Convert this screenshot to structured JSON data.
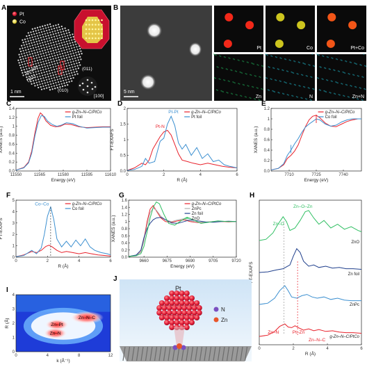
{
  "panels": {
    "A": {
      "label": "A",
      "legend": [
        {
          "name": "Pt",
          "color": "#e8202a"
        },
        {
          "name": "Co",
          "color": "#e8d84a"
        }
      ],
      "annotations": [
        "Pt skin",
        "(111)",
        "(011)",
        "(010)",
        "[100]"
      ],
      "scale_bar": "1 nm"
    },
    "B": {
      "label": "B",
      "scale_bar": "5 nm",
      "maps": [
        {
          "label": "Pt",
          "color": "#ff2a1a"
        },
        {
          "label": "Co",
          "color": "#d8d020"
        },
        {
          "label": "Pt+Co",
          "color": "#ff5a18"
        },
        {
          "label": "Zn",
          "color": "#1fb05a"
        },
        {
          "label": "N",
          "color": "#1fb6c8"
        },
        {
          "label": "Zn+N",
          "color": "#1fb6c8"
        }
      ]
    },
    "C": {
      "label": "C",
      "ylabel": "XANES (a.u.)",
      "xlabel": "Energy (eV)"
    },
    "D": {
      "label": "D",
      "ylabel": "FT-EXAFS",
      "xlabel": "R (Å)",
      "annotations": [
        "Pt-Pt",
        "Pt-N"
      ]
    },
    "E": {
      "label": "E",
      "ylabel": "XANES (a.u.)",
      "xlabel": "Energy (eV)"
    },
    "F": {
      "label": "F",
      "ylabel": "FT-EXAFS",
      "xlabel": "R (Å)",
      "annotations": [
        "Co–Co"
      ]
    },
    "G": {
      "label": "G",
      "ylabel": "XANES (a.u.)",
      "xlabel": "Energy (eV)"
    },
    "H": {
      "label": "H",
      "ylabel": "FT-EXAFS",
      "xlabel": "R (Å)",
      "annotations": [
        "Zn–O",
        "Zn–O–Zn",
        "Zn–N",
        "Pt–Zn",
        "Zn–N–C"
      ]
    },
    "I": {
      "label": "I",
      "ylabel": "R (Å)",
      "xlabel": "k (Å⁻¹)",
      "annotations": [
        "Zn–N–C",
        "Zn–Pt",
        "Zn–N"
      ]
    },
    "J": {
      "label": "J",
      "annotations": [
        "Pt",
        "N",
        "Zn"
      ]
    }
  },
  "chart_data": [
    {
      "panel": "C",
      "type": "line",
      "xlabel": "Energy (eV)",
      "ylabel": "XANES (a.u.)",
      "xlim": [
        11550,
        11610
      ],
      "ylim": [
        0,
        1.4
      ],
      "xticks": [
        11550,
        11565,
        11580,
        11595,
        11610
      ],
      "yticks": [
        0.0,
        0.2,
        0.4,
        0.6,
        0.8,
        1.0,
        1.2,
        1.4
      ],
      "legend": "top-right",
      "series": [
        {
          "name": "g-Zn–N–C/PtCo",
          "color": "#e8202a",
          "x": [
            11550,
            11555,
            11558,
            11560,
            11562,
            11564,
            11565.5,
            11567,
            11569,
            11572,
            11575,
            11578,
            11581,
            11585,
            11590,
            11595,
            11600,
            11605,
            11610
          ],
          "y": [
            0.02,
            0.08,
            0.2,
            0.45,
            0.85,
            1.18,
            1.3,
            1.25,
            1.12,
            1.02,
            0.99,
            1.0,
            1.05,
            1.04,
            0.99,
            0.97,
            0.98,
            0.99,
            0.99
          ]
        },
        {
          "name": "Pt foil",
          "color": "#3b8fd0",
          "x": [
            11550,
            11555,
            11558,
            11560,
            11562,
            11564,
            11566,
            11568,
            11570,
            11573,
            11576,
            11579,
            11582,
            11586,
            11590,
            11595,
            11600,
            11605,
            11610
          ],
          "y": [
            0.02,
            0.07,
            0.18,
            0.4,
            0.78,
            1.08,
            1.24,
            1.22,
            1.12,
            1.04,
            1.0,
            1.03,
            1.08,
            1.06,
            1.0,
            0.96,
            0.97,
            0.98,
            0.98
          ]
        }
      ]
    },
    {
      "panel": "D",
      "type": "line",
      "xlabel": "R (Å)",
      "ylabel": "FT-EXAFS",
      "xlim": [
        0,
        6
      ],
      "ylim": [
        0,
        2.0
      ],
      "xticks": [
        0,
        2,
        4,
        6
      ],
      "yticks": [
        0.0,
        0.5,
        1.0,
        1.5,
        2.0
      ],
      "legend": "top-right",
      "series": [
        {
          "name": "g-Zn–N–C/PtCo",
          "color": "#e8202a",
          "x": [
            0,
            0.4,
            0.8,
            1.0,
            1.2,
            1.4,
            1.6,
            1.8,
            2.0,
            2.2,
            2.4,
            2.6,
            2.8,
            3.0,
            3.3,
            3.6,
            4.0,
            4.4,
            4.8,
            5.2,
            5.6,
            6.0
          ],
          "y": [
            0.02,
            0.1,
            0.25,
            0.2,
            0.35,
            0.7,
            0.9,
            1.1,
            1.25,
            1.3,
            1.15,
            0.85,
            0.55,
            0.35,
            0.3,
            0.25,
            0.2,
            0.25,
            0.2,
            0.15,
            0.12,
            0.1
          ]
        },
        {
          "name": "Pt foil",
          "color": "#3b8fd0",
          "x": [
            0,
            0.4,
            0.8,
            1.0,
            1.2,
            1.5,
            1.8,
            2.0,
            2.2,
            2.4,
            2.6,
            2.8,
            3.0,
            3.2,
            3.5,
            3.8,
            4.1,
            4.4,
            4.7,
            5.0,
            5.3,
            5.6,
            6.0
          ],
          "y": [
            0.02,
            0.05,
            0.15,
            0.4,
            0.25,
            0.3,
            0.95,
            1.05,
            1.5,
            1.75,
            1.45,
            0.9,
            0.7,
            0.85,
            0.5,
            0.75,
            0.4,
            0.55,
            0.3,
            0.35,
            0.2,
            0.15,
            0.1
          ]
        }
      ]
    },
    {
      "panel": "E",
      "type": "line",
      "xlabel": "Energy (eV)",
      "ylabel": "XANES (a.u.)",
      "xlim": [
        7700,
        7750
      ],
      "ylim": [
        0,
        1.2
      ],
      "xticks": [
        7710,
        7725,
        7740
      ],
      "yticks": [
        0.0,
        0.2,
        0.4,
        0.6,
        0.8,
        1.0,
        1.2
      ],
      "legend": "top-right",
      "series": [
        {
          "name": "g-Zn–N–C/PtCo",
          "color": "#e8202a",
          "x": [
            7700,
            7704,
            7707,
            7709,
            7711,
            7713,
            7715,
            7717,
            7719,
            7721,
            7723,
            7725,
            7727,
            7730,
            7733,
            7736,
            7739,
            7742,
            7745,
            7748,
            7750
          ],
          "y": [
            0.02,
            0.05,
            0.12,
            0.24,
            0.3,
            0.38,
            0.5,
            0.68,
            0.85,
            0.98,
            1.05,
            1.07,
            1.02,
            0.92,
            0.86,
            0.85,
            0.9,
            0.95,
            0.98,
            1.0,
            1.0
          ]
        },
        {
          "name": "Co foil",
          "color": "#3b8fd0",
          "x": [
            7700,
            7704,
            7707,
            7709,
            7711,
            7713,
            7715,
            7717,
            7719,
            7721,
            7723,
            7725,
            7727,
            7730,
            7733,
            7736,
            7739,
            7742,
            7745,
            7748,
            7750
          ],
          "y": [
            0.02,
            0.05,
            0.14,
            0.3,
            0.4,
            0.52,
            0.62,
            0.74,
            0.84,
            0.9,
            0.95,
            1.0,
            0.98,
            0.9,
            0.86,
            0.88,
            0.94,
            0.98,
            1.0,
            1.0,
            1.0
          ]
        }
      ]
    },
    {
      "panel": "F",
      "type": "line",
      "xlabel": "R (Å)",
      "ylabel": "FT-EXAFS",
      "xlim": [
        0,
        6
      ],
      "ylim": [
        0,
        5
      ],
      "xticks": [
        0,
        2,
        4,
        6
      ],
      "yticks": [
        0,
        1,
        2,
        3,
        4,
        5
      ],
      "legend": "top-right",
      "series": [
        {
          "name": "g-Zn–N–C/PtCo",
          "color": "#e8202a",
          "x": [
            0,
            0.5,
            1.0,
            1.3,
            1.6,
            1.9,
            2.1,
            2.3,
            2.6,
            2.9,
            3.2,
            3.6,
            4.0,
            4.4,
            4.8,
            5.2,
            5.6,
            6.0
          ],
          "y": [
            0.05,
            0.2,
            0.5,
            0.4,
            0.6,
            0.95,
            1.05,
            0.9,
            0.6,
            0.4,
            0.5,
            0.4,
            0.3,
            0.4,
            0.3,
            0.2,
            0.15,
            0.1
          ]
        },
        {
          "name": "Co foil",
          "color": "#3b8fd0",
          "x": [
            0,
            0.5,
            1.0,
            1.3,
            1.6,
            1.8,
            2.0,
            2.2,
            2.4,
            2.6,
            2.9,
            3.2,
            3.5,
            3.8,
            4.1,
            4.4,
            4.7,
            5.0,
            5.4,
            5.8,
            6.0
          ],
          "y": [
            0.05,
            0.15,
            0.6,
            0.3,
            0.8,
            2.0,
            3.6,
            4.4,
            3.3,
            1.6,
            0.9,
            1.4,
            0.9,
            1.5,
            1.0,
            1.6,
            0.9,
            0.6,
            0.4,
            0.3,
            0.2
          ]
        }
      ]
    },
    {
      "panel": "G",
      "type": "line",
      "xlabel": "Energy (eV)",
      "ylabel": "XANES (a.u.)",
      "xlim": [
        9650,
        9720
      ],
      "ylim": [
        0,
        1.6
      ],
      "xticks": [
        9660,
        9675,
        9690,
        9705,
        9720
      ],
      "yticks": [
        0.0,
        0.2,
        0.4,
        0.6,
        0.8,
        1.0,
        1.2,
        1.4,
        1.6
      ],
      "legend": "top-right",
      "series": [
        {
          "name": "g-Zn–N–C/PtCo",
          "color": "#e8202a",
          "x": [
            9650,
            9655,
            9658,
            9660,
            9662,
            9664,
            9666,
            9668,
            9671,
            9674,
            9678,
            9682,
            9686,
            9690,
            9695,
            9700,
            9705,
            9710,
            9715,
            9720
          ],
          "y": [
            0.02,
            0.05,
            0.15,
            0.5,
            1.0,
            1.35,
            1.45,
            1.3,
            1.1,
            1.0,
            0.98,
            1.02,
            1.05,
            1.0,
            0.97,
            0.98,
            1.0,
            1.0,
            0.99,
            1.0
          ]
        },
        {
          "name": "ZnPc",
          "color": "#b0b0b0",
          "x": [
            9650,
            9655,
            9658,
            9660,
            9662,
            9664,
            9666,
            9668,
            9671,
            9674,
            9678,
            9682,
            9686,
            9690,
            9695,
            9700,
            9705,
            9710,
            9715,
            9720
          ],
          "y": [
            0.02,
            0.05,
            0.14,
            0.45,
            0.9,
            1.25,
            1.38,
            1.32,
            1.15,
            1.05,
            1.0,
            1.05,
            1.08,
            1.02,
            0.98,
            0.98,
            1.0,
            1.0,
            1.0,
            1.0
          ]
        },
        {
          "name": "Zn foil",
          "color": "#1f3f8c",
          "x": [
            9650,
            9655,
            9658,
            9660,
            9662,
            9664,
            9666,
            9668,
            9671,
            9674,
            9678,
            9682,
            9686,
            9690,
            9695,
            9700,
            9705,
            9710,
            9715,
            9720
          ],
          "y": [
            0.02,
            0.06,
            0.2,
            0.55,
            0.8,
            0.95,
            1.05,
            1.1,
            1.12,
            1.05,
            0.96,
            0.95,
            1.0,
            1.05,
            1.02,
            0.99,
            0.98,
            1.0,
            1.01,
            1.0
          ]
        },
        {
          "name": "ZnO",
          "color": "#2fbf62",
          "x": [
            9650,
            9655,
            9658,
            9660,
            9662,
            9664,
            9666,
            9668,
            9670,
            9673,
            9676,
            9680,
            9684,
            9688,
            9692,
            9697,
            9702,
            9708,
            9714,
            9720
          ],
          "y": [
            0.02,
            0.04,
            0.1,
            0.3,
            0.7,
            1.1,
            1.4,
            1.55,
            1.5,
            1.2,
            0.95,
            0.9,
            1.02,
            1.12,
            1.05,
            0.95,
            0.98,
            1.02,
            1.0,
            1.0
          ]
        }
      ]
    },
    {
      "panel": "H",
      "type": "line",
      "xlabel": "R (Å)",
      "ylabel": "FT-EXAFS",
      "xlim": [
        0,
        6
      ],
      "xticks": [
        0,
        2,
        4,
        6
      ],
      "series": [
        {
          "name": "ZnO",
          "color": "#2fbf62",
          "x": [
            0,
            0.4,
            0.8,
            1.1,
            1.4,
            1.6,
            1.8,
            2.1,
            2.4,
            2.7,
            2.9,
            3.2,
            3.5,
            3.8,
            4.2,
            4.6,
            5.0,
            5.4,
            5.8,
            6.0
          ],
          "y": [
            0.0,
            0.1,
            0.6,
            1.3,
            1.9,
            1.5,
            0.8,
            1.0,
            1.6,
            2.3,
            2.4,
            1.8,
            1.3,
            1.6,
            1.0,
            1.3,
            0.9,
            1.1,
            0.8,
            0.7
          ]
        },
        {
          "name": "Zn foil",
          "color": "#1f3f8c",
          "x": [
            0,
            0.5,
            1.0,
            1.4,
            1.8,
            2.0,
            2.2,
            2.4,
            2.6,
            2.9,
            3.2,
            3.5,
            3.9,
            4.3,
            4.7,
            5.1,
            5.5,
            6.0
          ],
          "y": [
            0.0,
            0.05,
            0.2,
            0.3,
            0.6,
            1.3,
            1.9,
            1.6,
            0.9,
            0.5,
            0.6,
            0.4,
            0.5,
            0.35,
            0.4,
            0.3,
            0.3,
            0.25
          ]
        },
        {
          "name": "ZnPc",
          "color": "#3b8fd0",
          "x": [
            0,
            0.5,
            0.9,
            1.2,
            1.5,
            1.7,
            1.9,
            2.2,
            2.5,
            2.8,
            3.1,
            3.4,
            3.8,
            4.2,
            4.6,
            5.0,
            5.4,
            6.0
          ],
          "y": [
            0.0,
            0.1,
            0.5,
            1.1,
            1.5,
            1.1,
            0.6,
            0.5,
            0.7,
            0.8,
            0.6,
            0.5,
            0.6,
            0.4,
            0.5,
            0.35,
            0.3,
            0.3
          ]
        },
        {
          "name": "g-Zn–N–C/PtCo",
          "color": "#e8202a",
          "x": [
            0,
            0.5,
            0.9,
            1.2,
            1.5,
            1.7,
            1.9,
            2.1,
            2.3,
            2.6,
            2.9,
            3.2,
            3.5,
            3.9,
            4.3,
            4.7,
            5.1,
            5.5,
            6.0
          ],
          "y": [
            0.0,
            0.1,
            0.4,
            0.8,
            1.0,
            0.75,
            0.7,
            0.85,
            0.7,
            0.5,
            0.6,
            0.45,
            0.55,
            0.4,
            0.45,
            0.35,
            0.3,
            0.3,
            0.25
          ]
        }
      ]
    },
    {
      "panel": "I",
      "type": "heatmap",
      "xlabel": "k (Å⁻¹)",
      "ylabel": "R (Å)",
      "xlim": [
        0,
        12
      ],
      "ylim": [
        0,
        4
      ],
      "xticks": [
        0,
        4,
        8,
        12
      ],
      "yticks": [
        0,
        1,
        2,
        3,
        4
      ],
      "hotspots": [
        {
          "label": "Zn–N–C",
          "k": 9.0,
          "R": 2.4
        },
        {
          "label": "Zn–Pt",
          "k": 5.2,
          "R": 1.9
        },
        {
          "label": "Zn–N",
          "k": 5.0,
          "R": 1.3
        }
      ]
    }
  ]
}
